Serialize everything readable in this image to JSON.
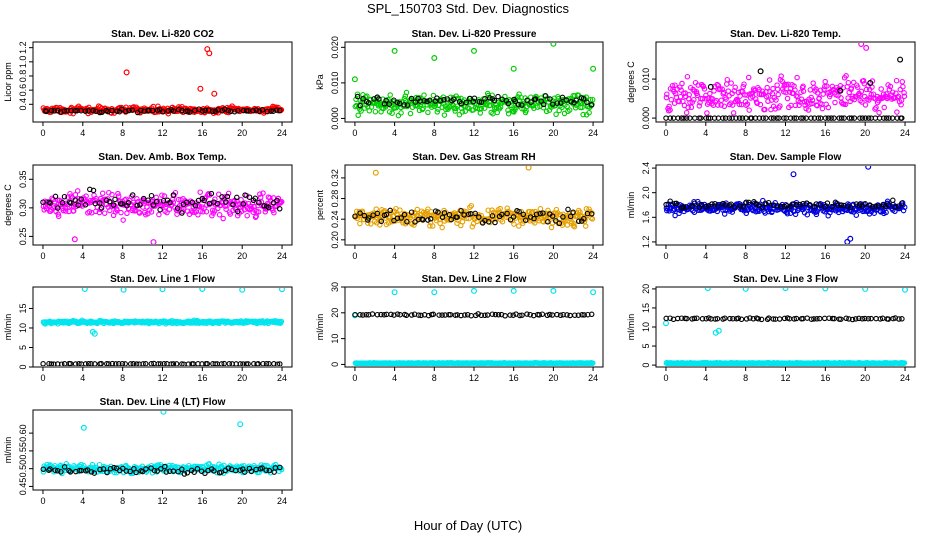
{
  "figure": {
    "title": "SPL_150703  Std. Dev. Diagnostics",
    "xlabel": "Hour of Day (UTC)"
  },
  "chart_data": [
    {
      "type": "scatter",
      "title": "Stan. Dev. Li-820 CO2",
      "ylabel": "Licor ppm",
      "xlim": [
        -1,
        25
      ],
      "ylim": [
        0.15,
        1.28
      ],
      "xticks": [
        "0",
        "4",
        "8",
        "12",
        "16",
        "20",
        "24"
      ],
      "yticks": [
        "0.4",
        "0.6",
        "0.8",
        "1.0",
        "1.2"
      ],
      "series": [
        {
          "color": "#ff0000",
          "base": 0.32,
          "spread": 0.06,
          "outliers": [
            [
              8.4,
              0.85
            ],
            [
              16.5,
              1.18
            ],
            [
              16.7,
              1.12
            ],
            [
              15.8,
              0.62
            ],
            [
              17.2,
              0.55
            ]
          ]
        },
        {
          "color": "#000000",
          "base": 0.31,
          "spread": 0.03,
          "outliers": []
        }
      ]
    },
    {
      "type": "scatter",
      "title": "Stan. Dev. Li-820 Pressure",
      "ylabel": "kPa",
      "xlim": [
        -1,
        25
      ],
      "ylim": [
        -0.001,
        0.0215
      ],
      "xticks": [
        "0",
        "4",
        "8",
        "12",
        "16",
        "20",
        "24"
      ],
      "yticks": [
        "0.000",
        "0.010",
        "0.020"
      ],
      "series": [
        {
          "color": "#00cc00",
          "base": 0.004,
          "spread": 0.004,
          "outliers": [
            [
              0,
              0.011
            ],
            [
              4,
              0.019
            ],
            [
              8,
              0.017
            ],
            [
              12,
              0.019
            ],
            [
              16,
              0.014
            ],
            [
              20,
              0.021
            ],
            [
              24,
              0.014
            ]
          ]
        },
        {
          "color": "#000000",
          "base": 0.005,
          "spread": 0.002,
          "outliers": []
        }
      ]
    },
    {
      "type": "scatter",
      "title": "Stan. Dev. Li-820 Temp.",
      "ylabel": "degrees C",
      "xlim": [
        -1,
        25
      ],
      "ylim": [
        -0.001,
        0.0195
      ],
      "xticks": [
        "0",
        "4",
        "8",
        "12",
        "16",
        "20",
        "24"
      ],
      "yticks": [
        "0.000",
        "0.010"
      ],
      "series": [
        {
          "color": "#ff00ff",
          "base": 0.006,
          "spread": 0.006,
          "outliers": [
            [
              19.6,
              0.019
            ],
            [
              20.1,
              0.018
            ]
          ]
        },
        {
          "color": "#000000",
          "base": 0.0,
          "spread": 0.0,
          "outliers": [
            [
              4.5,
              0.008
            ],
            [
              9.5,
              0.012
            ],
            [
              17.5,
              0.007
            ],
            [
              20.5,
              0.009
            ],
            [
              23.5,
              0.015
            ]
          ]
        }
      ]
    },
    {
      "type": "scatter",
      "title": "Stan. Dev. Amb. Box Temp.",
      "ylabel": "degrees C",
      "xlim": [
        -1,
        25
      ],
      "ylim": [
        0.235,
        0.375
      ],
      "xticks": [
        "0",
        "4",
        "8",
        "12",
        "16",
        "20",
        "24"
      ],
      "yticks": [
        "0.25",
        "0.30",
        "0.35"
      ],
      "series": [
        {
          "color": "#ff00ff",
          "base": 0.305,
          "spread": 0.028,
          "outliers": [
            [
              3.2,
              0.245
            ],
            [
              11.1,
              0.24
            ]
          ]
        },
        {
          "color": "#000000",
          "base": 0.31,
          "spread": 0.025,
          "outliers": []
        }
      ]
    },
    {
      "type": "scatter",
      "title": "Stan. Dev. Gas Stream RH",
      "ylabel": "percent",
      "xlim": [
        -1,
        25
      ],
      "ylim": [
        0.19,
        0.345
      ],
      "xticks": [
        "0",
        "4",
        "8",
        "12",
        "16",
        "20",
        "24"
      ],
      "yticks": [
        "0.20",
        "0.24",
        "0.28",
        "0.32"
      ],
      "series": [
        {
          "color": "#e6a000",
          "base": 0.245,
          "spread": 0.025,
          "outliers": [
            [
              2.1,
              0.33
            ],
            [
              17.5,
              0.34
            ]
          ]
        },
        {
          "color": "#000000",
          "base": 0.245,
          "spread": 0.02,
          "outliers": []
        }
      ]
    },
    {
      "type": "scatter",
      "title": "Stan. Dev. Sample Flow",
      "ylabel": "ml/min",
      "xlim": [
        -1,
        25
      ],
      "ylim": [
        1.15,
        2.45
      ],
      "xticks": [
        "0",
        "4",
        "8",
        "12",
        "16",
        "20",
        "24"
      ],
      "yticks": [
        "1.2",
        "1.6",
        "2.0",
        "2.4"
      ],
      "series": [
        {
          "color": "#0000dd",
          "base": 1.75,
          "spread": 0.14,
          "outliers": [
            [
              12.8,
              2.3
            ],
            [
              18.2,
              1.2
            ],
            [
              18.5,
              1.25
            ],
            [
              20.3,
              2.42
            ]
          ]
        },
        {
          "color": "#000000",
          "base": 1.8,
          "spread": 0.09,
          "outliers": []
        }
      ]
    },
    {
      "type": "scatter",
      "title": "Stan. Dev. Line 1 Flow",
      "ylabel": "ml/min",
      "xlim": [
        -1,
        25
      ],
      "ylim": [
        0,
        20.5
      ],
      "xticks": [
        "0",
        "4",
        "8",
        "12",
        "16",
        "20",
        "24"
      ],
      "yticks": [
        "0",
        "5",
        "10",
        "15"
      ],
      "series": [
        {
          "color": "#00e5ee",
          "base": 11.5,
          "spread": 0.5,
          "outliers": [
            [
              4.2,
              20
            ],
            [
              8.1,
              19.8
            ],
            [
              12,
              19.9
            ],
            [
              16,
              20
            ],
            [
              20,
              19.8
            ],
            [
              24,
              19.9
            ],
            [
              5,
              9
            ],
            [
              5.2,
              8.5
            ]
          ]
        },
        {
          "color": "#000000",
          "base": 0.8,
          "spread": 0.1,
          "outliers": []
        }
      ]
    },
    {
      "type": "scatter",
      "title": "Stan. Dev. Line 2 Flow",
      "ylabel": "ml/min",
      "xlim": [
        -1,
        25
      ],
      "ylim": [
        -1,
        30
      ],
      "xticks": [
        "0",
        "4",
        "8",
        "12",
        "16",
        "20",
        "24"
      ],
      "yticks": [
        "0",
        "10",
        "20",
        "30"
      ],
      "series": [
        {
          "color": "#00e5ee",
          "base": 0.5,
          "spread": 0.2,
          "outliers": [
            [
              0,
              19
            ],
            [
              4,
              28
            ],
            [
              8,
              28
            ],
            [
              12,
              28.5
            ],
            [
              16,
              28.5
            ],
            [
              20,
              28.5
            ],
            [
              24,
              28
            ]
          ]
        },
        {
          "color": "#000000",
          "base": 19.2,
          "spread": 0.5,
          "outliers": []
        }
      ]
    },
    {
      "type": "scatter",
      "title": "Stan. Dev. Line 3 Flow",
      "ylabel": "ml/min",
      "xlim": [
        -1,
        25
      ],
      "ylim": [
        -0.5,
        20.5
      ],
      "xticks": [
        "0",
        "4",
        "8",
        "12",
        "16",
        "20",
        "24"
      ],
      "yticks": [
        "0",
        "5",
        "10",
        "15",
        "20"
      ],
      "series": [
        {
          "color": "#00e5ee",
          "base": 0.5,
          "spread": 0.2,
          "outliers": [
            [
              0,
              11
            ],
            [
              4.2,
              20.2
            ],
            [
              8,
              20
            ],
            [
              12,
              20.2
            ],
            [
              16,
              20.1
            ],
            [
              20,
              20
            ],
            [
              24,
              19.8
            ],
            [
              5,
              8.5
            ],
            [
              5.3,
              9
            ]
          ]
        },
        {
          "color": "#000000",
          "base": 12.2,
          "spread": 0.3,
          "outliers": []
        }
      ]
    },
    {
      "type": "scatter",
      "title": "Stan. Dev. Line 4 (LT) Flow",
      "ylabel": "ml/min",
      "xlim": [
        -1,
        25
      ],
      "ylim": [
        0.44,
        0.665
      ],
      "xticks": [
        "0",
        "4",
        "8",
        "12",
        "16",
        "20",
        "24"
      ],
      "yticks": [
        "0.45",
        "0.50",
        "0.55",
        "0.60"
      ],
      "series": [
        {
          "color": "#00e5ee",
          "base": 0.5,
          "spread": 0.018,
          "outliers": [
            [
              4.1,
              0.615
            ],
            [
              12.1,
              0.66
            ],
            [
              19.8,
              0.625
            ]
          ]
        },
        {
          "color": "#000000",
          "base": 0.495,
          "spread": 0.015,
          "outliers": []
        }
      ]
    }
  ]
}
